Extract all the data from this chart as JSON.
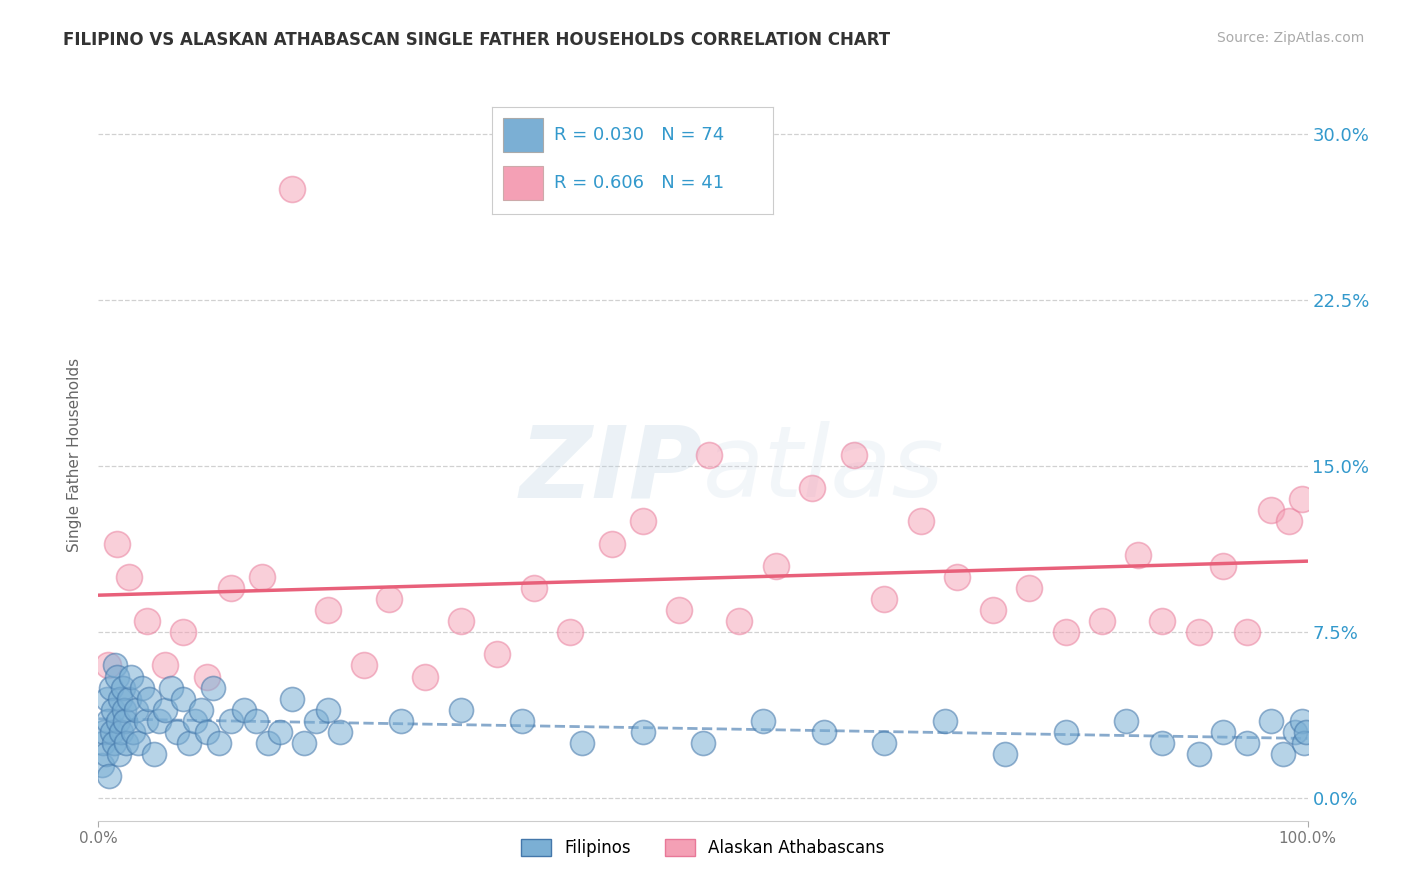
{
  "title": "FILIPINO VS ALASKAN ATHABASCAN SINGLE FATHER HOUSEHOLDS CORRELATION CHART",
  "source": "Source: ZipAtlas.com",
  "ylabel": "Single Father Households",
  "ytick_vals": [
    0.0,
    7.5,
    15.0,
    22.5,
    30.0
  ],
  "xlim": [
    0,
    100
  ],
  "ylim": [
    -1,
    32
  ],
  "legend_filipino": "Filipinos",
  "legend_athabascan": "Alaskan Athabascans",
  "filipino_R": "0.030",
  "filipino_N": "74",
  "athabascan_R": "0.606",
  "athabascan_N": "41",
  "filipino_color": "#7bafd4",
  "athabascan_color": "#f4a0b5",
  "filipino_edge_color": "#4477aa",
  "athabascan_edge_color": "#e87898",
  "filipino_line_color": "#88aacc",
  "athabascan_line_color": "#e8607a",
  "title_color": "#333333",
  "stat_color": "#3399cc",
  "background_color": "#ffffff",
  "watermark_zip": "ZIP",
  "watermark_atlas": "atlas",
  "filipino_x": [
    0.3,
    0.4,
    0.5,
    0.6,
    0.7,
    0.8,
    0.9,
    1.0,
    1.1,
    1.2,
    1.3,
    1.4,
    1.5,
    1.6,
    1.7,
    1.8,
    1.9,
    2.0,
    2.1,
    2.2,
    2.3,
    2.5,
    2.7,
    2.9,
    3.1,
    3.3,
    3.6,
    3.9,
    4.2,
    4.6,
    5.0,
    5.5,
    6.0,
    6.5,
    7.0,
    7.5,
    8.0,
    8.5,
    9.0,
    9.5,
    10.0,
    11.0,
    12.0,
    13.0,
    14.0,
    15.0,
    16.0,
    17.0,
    18.0,
    19.0,
    20.0,
    25.0,
    30.0,
    35.0,
    40.0,
    45.0,
    50.0,
    55.0,
    60.0,
    65.0,
    70.0,
    75.0,
    80.0,
    85.0,
    88.0,
    91.0,
    93.0,
    95.0,
    97.0,
    98.0,
    99.0,
    99.5,
    99.7,
    99.9
  ],
  "filipino_y": [
    1.5,
    2.5,
    3.0,
    2.0,
    4.5,
    3.5,
    1.0,
    5.0,
    3.0,
    4.0,
    2.5,
    6.0,
    5.5,
    3.5,
    2.0,
    4.5,
    3.0,
    5.0,
    4.0,
    3.5,
    2.5,
    4.5,
    5.5,
    3.0,
    4.0,
    2.5,
    5.0,
    3.5,
    4.5,
    2.0,
    3.5,
    4.0,
    5.0,
    3.0,
    4.5,
    2.5,
    3.5,
    4.0,
    3.0,
    5.0,
    2.5,
    3.5,
    4.0,
    3.5,
    2.5,
    3.0,
    4.5,
    2.5,
    3.5,
    4.0,
    3.0,
    3.5,
    4.0,
    3.5,
    2.5,
    3.0,
    2.5,
    3.5,
    3.0,
    2.5,
    3.5,
    2.0,
    3.0,
    3.5,
    2.5,
    2.0,
    3.0,
    2.5,
    3.5,
    2.0,
    3.0,
    3.5,
    2.5,
    3.0
  ],
  "athabascan_x": [
    0.8,
    1.5,
    2.5,
    4.0,
    5.5,
    7.0,
    9.0,
    11.0,
    13.5,
    16.0,
    19.0,
    22.0,
    24.0,
    27.0,
    30.0,
    33.0,
    36.0,
    39.0,
    42.5,
    45.0,
    48.0,
    50.5,
    53.0,
    56.0,
    59.0,
    62.5,
    65.0,
    68.0,
    71.0,
    74.0,
    77.0,
    80.0,
    83.0,
    86.0,
    88.0,
    91.0,
    93.0,
    95.0,
    97.0,
    98.5,
    99.5
  ],
  "athabascan_y": [
    6.0,
    11.5,
    10.0,
    8.0,
    6.0,
    7.5,
    5.5,
    9.5,
    10.0,
    27.5,
    8.5,
    6.0,
    9.0,
    5.5,
    8.0,
    6.5,
    9.5,
    7.5,
    11.5,
    12.5,
    8.5,
    15.5,
    8.0,
    10.5,
    14.0,
    15.5,
    9.0,
    12.5,
    10.0,
    8.5,
    9.5,
    7.5,
    8.0,
    11.0,
    8.0,
    7.5,
    10.5,
    7.5,
    13.0,
    12.5,
    13.5
  ]
}
